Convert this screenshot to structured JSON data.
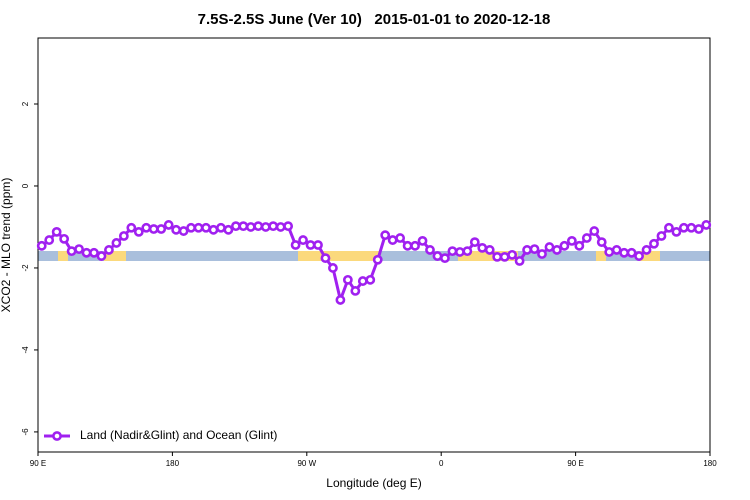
{
  "chart_data": {
    "type": "line",
    "title": "7.5S-2.5S June (Ver 10)   2015-01-01 to 2020-12-18",
    "x_label": "Longitude (deg E)",
    "y_label": "XCO2 - MLO trend (ppm)",
    "x": [
      92.5,
      97.5,
      102.5,
      107.5,
      112.5,
      117.5,
      122.5,
      127.5,
      132.5,
      137.5,
      142.5,
      147.5,
      152.5,
      157.5,
      162.5,
      167.5,
      172.5,
      177.5,
      182.5,
      187.5,
      192.5,
      197.5,
      202.5,
      207.5,
      212.5,
      217.5,
      222.5,
      227.5,
      232.5,
      237.5,
      242.5,
      247.5,
      252.5,
      257.5,
      262.5,
      267.5,
      272.5,
      277.5,
      282.5,
      287.5,
      292.5,
      297.5,
      302.5,
      307.5,
      312.5,
      317.5,
      322.5,
      327.5,
      332.5,
      337.5,
      342.5,
      347.5,
      352.5,
      357.5,
      362.5,
      367.5,
      372.5,
      377.5,
      382.5,
      387.5,
      392.5,
      397.5,
      402.5,
      407.5,
      412.5,
      417.5,
      422.5,
      427.5,
      432.5,
      437.5,
      442.5,
      447.5,
      452.5,
      457.5,
      462.5,
      467.5,
      472.5,
      477.5,
      482.5,
      487.5,
      492.5,
      497.5,
      502.5,
      507.5,
      512.5,
      517.5,
      522.5,
      527.5,
      532.5,
      537.5
    ],
    "series": [
      {
        "name": "Land (Nadir&Glint) and Ocean (Glint)",
        "color": "#a020f0",
        "values": [
          -1.46,
          -1.32,
          -1.12,
          -1.29,
          -1.59,
          -1.54,
          -1.63,
          -1.63,
          -1.71,
          -1.56,
          -1.39,
          -1.22,
          -1.02,
          -1.12,
          -1.02,
          -1.05,
          -1.05,
          -0.95,
          -1.07,
          -1.1,
          -1.02,
          -1.02,
          -1.02,
          -1.07,
          -1.02,
          -1.07,
          -0.98,
          -0.98,
          -1.0,
          -0.98,
          -1.0,
          -0.98,
          -1.0,
          -0.98,
          -1.44,
          -1.32,
          -1.44,
          -1.44,
          -1.76,
          -2.0,
          -2.78,
          -2.29,
          -2.56,
          -2.32,
          -2.29,
          -1.8,
          -1.2,
          -1.32,
          -1.27,
          -1.46,
          -1.46,
          -1.34,
          -1.56,
          -1.71,
          -1.76,
          -1.59,
          -1.61,
          -1.59,
          -1.37,
          -1.51,
          -1.56,
          -1.73,
          -1.73,
          -1.68,
          -1.83,
          -1.56,
          -1.54,
          -1.66,
          -1.49,
          -1.56,
          -1.46,
          -1.34,
          -1.46,
          -1.27,
          -1.1,
          -1.37,
          -1.61,
          -1.56,
          -1.63,
          -1.63,
          -1.71,
          -1.56,
          -1.41,
          -1.22,
          -1.02,
          -1.12,
          -1.02,
          -1.02,
          -1.05,
          -0.95
        ]
      }
    ],
    "xlim": [
      90,
      540
    ],
    "xticks": [
      {
        "value": 90,
        "label": "90 E"
      },
      180,
      {
        "value": 270,
        "label": "90 W"
      },
      {
        "value": 360,
        "label": "0"
      },
      {
        "value": 450,
        "label": "90 E"
      },
      {
        "value": 540,
        "label": "180"
      }
    ],
    "ylim": [
      -6.49,
      3.61
    ],
    "yticks": [
      -6,
      -4,
      -2,
      0,
      2
    ],
    "legend": "bottom-left"
  }
}
